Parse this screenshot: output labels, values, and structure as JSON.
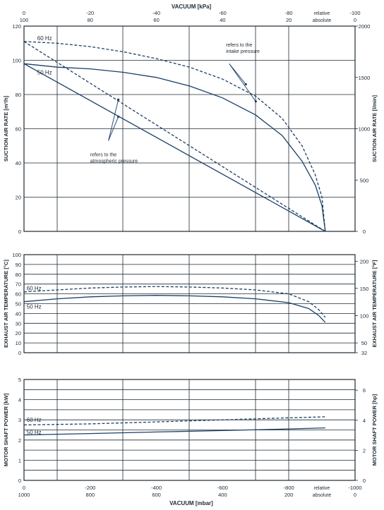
{
  "top_axis": {
    "title": "VACUUM  [kPa]",
    "ticks": [
      {
        "x": 0,
        "top": "0",
        "bottom": "100"
      },
      {
        "x": -200,
        "top": "-20",
        "bottom": "80"
      },
      {
        "x": -400,
        "top": "-40",
        "bottom": "60"
      },
      {
        "x": -600,
        "top": "-60",
        "bottom": "40"
      },
      {
        "x": -800,
        "top": "-80",
        "bottom": "20"
      },
      {
        "x": -1000,
        "top": "-100",
        "bottom": "0"
      }
    ],
    "special": {
      "top": "relative",
      "bottom": "absolute"
    }
  },
  "bottom_axis": {
    "title": "VACUUM  [mbar]",
    "ticks": [
      {
        "x": 0,
        "top": "0",
        "bottom": "1000"
      },
      {
        "x": -200,
        "top": "-200",
        "bottom": "800"
      },
      {
        "x": -400,
        "top": "-400",
        "bottom": "600"
      },
      {
        "x": -600,
        "top": "-600",
        "bottom": "400"
      },
      {
        "x": -800,
        "top": "-800",
        "bottom": "200"
      },
      {
        "x": -1000,
        "top": "-1000",
        "bottom": "0"
      }
    ],
    "special": {
      "top": "relative",
      "bottom": "absolute"
    }
  },
  "chart_data": [
    {
      "type": "line",
      "ylabel": "SUCTION AIR RATE  [m³/h]",
      "ylabel_right": "SUCTION AIR RATE  [l/min]",
      "xlim": [
        0,
        -1000
      ],
      "ylim": [
        0,
        120
      ],
      "yticks": [
        0,
        20,
        40,
        60,
        80,
        100,
        120
      ],
      "yticks_right": [
        {
          "label": "0",
          "value": 0
        },
        {
          "label": "500",
          "value": 30
        },
        {
          "label": "1000",
          "value": 60
        },
        {
          "label": "1500",
          "value": 90
        },
        {
          "label": "2000",
          "value": 120
        }
      ],
      "series": [
        {
          "name": "60 Hz",
          "style": "dashed",
          "points": [
            [
              0,
              111
            ],
            [
              -100,
              110
            ],
            [
              -200,
              108
            ],
            [
              -300,
              105
            ],
            [
              -400,
              101
            ],
            [
              -500,
              96
            ],
            [
              -600,
              89
            ],
            [
              -700,
              79
            ],
            [
              -780,
              66
            ],
            [
              -840,
              50
            ],
            [
              -880,
              33
            ],
            [
              -900,
              20
            ],
            [
              -910,
              0
            ]
          ]
        },
        {
          "name": "50 Hz",
          "style": "solid",
          "points": [
            [
              0,
              98
            ],
            [
              -100,
              96
            ],
            [
              -200,
              95
            ],
            [
              -300,
              93
            ],
            [
              -400,
              90
            ],
            [
              -500,
              85
            ],
            [
              -600,
              78
            ],
            [
              -700,
              68
            ],
            [
              -780,
              56
            ],
            [
              -840,
              41
            ],
            [
              -880,
              27
            ],
            [
              -900,
              15
            ],
            [
              -910,
              0
            ]
          ]
        },
        {
          "name": "",
          "style": "dashed",
          "points": [
            [
              0,
              111
            ],
            [
              -910,
              0
            ]
          ]
        },
        {
          "name": "",
          "style": "solid",
          "points": [
            [
              0,
              98
            ],
            [
              -910,
              0
            ]
          ]
        }
      ],
      "series_labels": [
        {
          "text": "60 Hz",
          "x": -40,
          "y": 113
        },
        {
          "text": "50 Hz",
          "x": -40,
          "y": 93
        }
      ],
      "annotations": [
        {
          "lines": [
            "refers to the",
            "intake pressure"
          ],
          "x": -610,
          "y": 108,
          "anchor": [
            -620,
            98
          ],
          "targets": [
            [
              -670,
              86
            ],
            [
              -700,
              76
            ]
          ]
        },
        {
          "lines": [
            "refers to the",
            "atmospheric pressure"
          ],
          "x": -200,
          "y": 44,
          "anchor": [
            -255,
            53
          ],
          "targets": [
            [
              -285,
              77
            ],
            [
              -285,
              67
            ]
          ]
        }
      ]
    },
    {
      "type": "line",
      "ylabel": "EXHAUST AIR TEMPERATURE  [°C]",
      "ylabel_right": "EXHAUST AIR TEMPERATURE  [°F]",
      "xlim": [
        0,
        -1000
      ],
      "ylim": [
        0,
        100
      ],
      "yticks": [
        0,
        10,
        20,
        30,
        40,
        50,
        60,
        70,
        80,
        90,
        100
      ],
      "yticks_right": [
        {
          "label": "32",
          "value": 0
        },
        {
          "label": "50",
          "value": 10
        },
        {
          "label": "100",
          "value": 37.8
        },
        {
          "label": "150",
          "value": 65.6
        },
        {
          "label": "200",
          "value": 93.3
        }
      ],
      "series": [
        {
          "name": "60 Hz",
          "style": "dashed",
          "points": [
            [
              0,
              62
            ],
            [
              -100,
              64
            ],
            [
              -200,
              66
            ],
            [
              -300,
              67
            ],
            [
              -400,
              67.5
            ],
            [
              -500,
              67
            ],
            [
              -600,
              66
            ],
            [
              -700,
              64
            ],
            [
              -800,
              60
            ],
            [
              -860,
              52
            ],
            [
              -890,
              44
            ],
            [
              -910,
              36
            ]
          ]
        },
        {
          "name": "50 Hz",
          "style": "solid",
          "points": [
            [
              0,
              52
            ],
            [
              -100,
              55
            ],
            [
              -200,
              57
            ],
            [
              -300,
              58
            ],
            [
              -400,
              58.5
            ],
            [
              -500,
              58
            ],
            [
              -600,
              57
            ],
            [
              -700,
              55
            ],
            [
              -800,
              51
            ],
            [
              -860,
              45
            ],
            [
              -890,
              38
            ],
            [
              -910,
              31
            ]
          ]
        }
      ],
      "series_labels": [
        {
          "text": "60 Hz",
          "x": -8,
          "y": 66
        },
        {
          "text": "50 Hz",
          "x": -8,
          "y": 47
        }
      ],
      "annotations": []
    },
    {
      "type": "line",
      "ylabel": "MOTOR SHAFT POWER  [kW]",
      "ylabel_right": "MOTOR SHAFT POWER  [hp]",
      "xlim": [
        0,
        -1000
      ],
      "ylim": [
        0,
        5
      ],
      "yticks": [
        0,
        0.5,
        1,
        1.5,
        2,
        2.5,
        3,
        3.5,
        4,
        4.5,
        5
      ],
      "yticks_labeled": [
        0,
        1,
        2,
        3,
        4,
        5
      ],
      "yticks_right": [
        {
          "label": "0",
          "value": 0
        },
        {
          "label": "2",
          "value": 1.49
        },
        {
          "label": "4",
          "value": 2.98
        },
        {
          "label": "6",
          "value": 4.47
        }
      ],
      "series": [
        {
          "name": "60 Hz",
          "style": "dashed",
          "points": [
            [
              0,
              2.75
            ],
            [
              -200,
              2.8
            ],
            [
              -400,
              2.9
            ],
            [
              -600,
              3.0
            ],
            [
              -800,
              3.1
            ],
            [
              -910,
              3.15
            ]
          ]
        },
        {
          "name": "50 Hz",
          "style": "solid",
          "points": [
            [
              0,
              2.25
            ],
            [
              -200,
              2.32
            ],
            [
              -400,
              2.4
            ],
            [
              -600,
              2.47
            ],
            [
              -800,
              2.55
            ],
            [
              -910,
              2.6
            ]
          ]
        }
      ],
      "series_labels": [
        {
          "text": "60 Hz",
          "x": -8,
          "y": 3.0
        },
        {
          "text": "50 Hz",
          "x": -8,
          "y": 2.4
        }
      ],
      "annotations": []
    }
  ],
  "colors": {
    "line": "#1b3f66",
    "grid": "#1e2a33",
    "text": "#1e2a33"
  }
}
